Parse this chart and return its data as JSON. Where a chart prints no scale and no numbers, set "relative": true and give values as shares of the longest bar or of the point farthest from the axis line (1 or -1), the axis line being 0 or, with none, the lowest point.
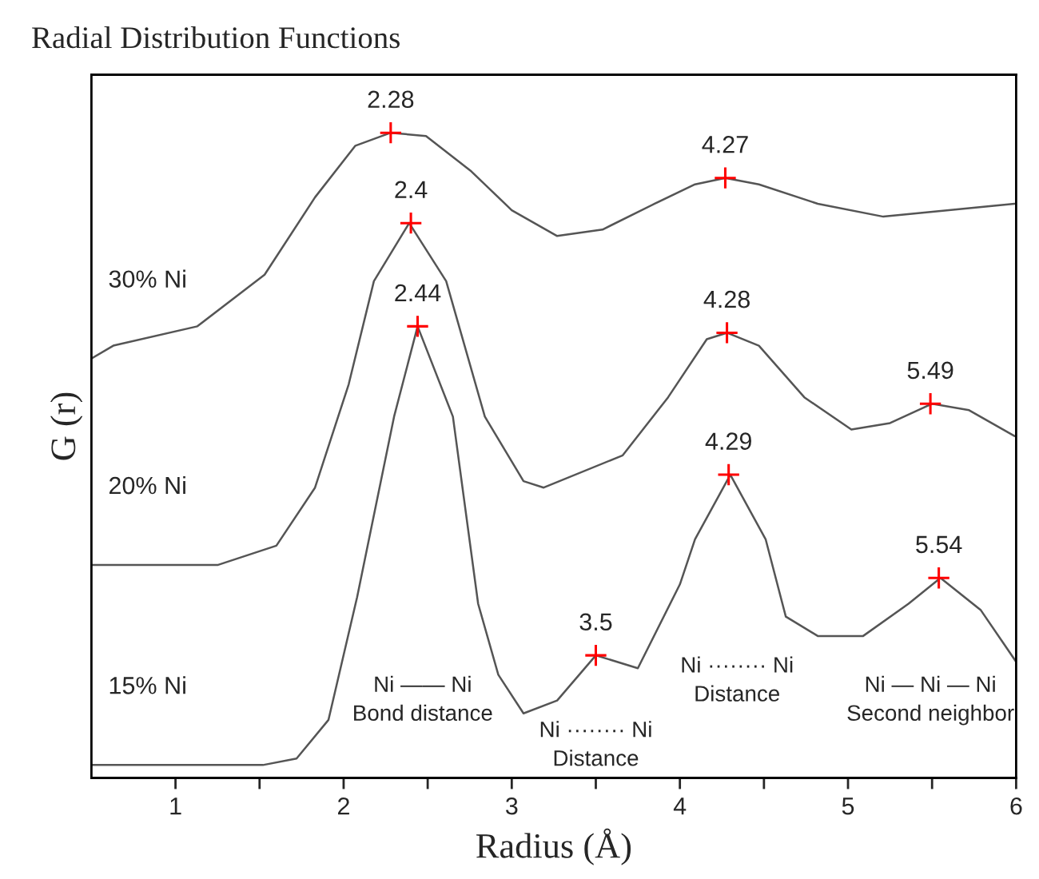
{
  "chart_data": {
    "type": "line",
    "title": "Radial Distribution Functions",
    "xlabel": "Radius (Å)",
    "ylabel": "G (r)",
    "relative": true,
    "xlim": [
      0.5,
      6
    ],
    "xticks": [
      1,
      {
        "value": 1.5,
        "label": null
      },
      2,
      {
        "value": 2.5,
        "label": null
      },
      3,
      {
        "value": 3.5,
        "label": null
      },
      4,
      {
        "value": 4.5,
        "label": null
      },
      5,
      {
        "value": 5.5,
        "label": null
      },
      6
    ],
    "grid": false,
    "legend": false,
    "tick_labels": "x",
    "series": [
      {
        "name": "30% Ni",
        "color": "#555555",
        "x": [
          0.5,
          0.63,
          1.13,
          1.53,
          1.83,
          2.07,
          2.28,
          2.49,
          2.76,
          3.0,
          3.27,
          3.54,
          3.85,
          4.09,
          4.27,
          4.47,
          4.82,
          5.21,
          5.6,
          5.99
        ],
        "values": [
          0.65,
          0.67,
          0.7,
          0.78,
          0.9,
          0.98,
          1.0,
          0.995,
          0.94,
          0.88,
          0.84,
          0.85,
          0.89,
          0.92,
          0.93,
          0.92,
          0.89,
          0.87,
          0.88,
          0.89
        ]
      },
      {
        "name": "20% Ni",
        "color": "#555555",
        "x": [
          0.5,
          1.25,
          1.6,
          1.83,
          2.03,
          2.18,
          2.39,
          2.61,
          2.84,
          3.07,
          3.19,
          3.66,
          3.93,
          4.16,
          4.28,
          4.47,
          4.74,
          5.02,
          5.25,
          5.5,
          5.72,
          5.99
        ],
        "values": [
          0.33,
          0.33,
          0.36,
          0.45,
          0.61,
          0.77,
          0.86,
          0.77,
          0.56,
          0.46,
          0.45,
          0.5,
          0.59,
          0.68,
          0.69,
          0.67,
          0.59,
          0.54,
          0.55,
          0.58,
          0.57,
          0.53
        ]
      },
      {
        "name": "15% Ni",
        "color": "#555555",
        "x": [
          0.5,
          1.52,
          1.72,
          1.91,
          2.08,
          2.3,
          2.44,
          2.65,
          2.8,
          2.92,
          3.07,
          3.27,
          3.5,
          3.75,
          4.0,
          4.09,
          4.3,
          4.51,
          4.63,
          4.82,
          5.09,
          5.36,
          5.55,
          5.79,
          6.0
        ],
        "values": [
          0.02,
          0.02,
          0.03,
          0.09,
          0.28,
          0.56,
          0.7,
          0.56,
          0.27,
          0.16,
          0.1,
          0.12,
          0.19,
          0.17,
          0.3,
          0.37,
          0.47,
          0.37,
          0.25,
          0.22,
          0.22,
          0.27,
          0.31,
          0.26,
          0.18
        ]
      },
      {
        "type": "scatter",
        "marker": "cross",
        "color": "#ff0000",
        "x": [
          2.28,
          4.27,
          2.4,
          4.28,
          5.49,
          2.44,
          3.5,
          4.29,
          5.54
        ],
        "values": [
          1.0,
          0.93,
          0.86,
          0.69,
          0.58,
          0.7,
          0.19,
          0.47,
          0.31
        ]
      }
    ],
    "annotations": [
      {
        "text": "2.28",
        "x": 2.28,
        "y": 1.0
      },
      {
        "text": "4.27",
        "x": 4.27,
        "y": 0.93
      },
      {
        "text": "2.4",
        "x": 2.4,
        "y": 0.86
      },
      {
        "text": "4.28",
        "x": 4.28,
        "y": 0.69
      },
      {
        "text": "5.49",
        "x": 5.49,
        "y": 0.58
      },
      {
        "text": "2.44",
        "x": 2.44,
        "y": 0.7
      },
      {
        "text": "3.5",
        "x": 3.5,
        "y": 0.19
      },
      {
        "text": "4.29",
        "x": 4.29,
        "y": 0.47
      },
      {
        "text": "5.54",
        "x": 5.54,
        "y": 0.31
      },
      "Ni —— Ni\nBond distance",
      "Ni ········ Ni\nDistance",
      "Ni ········ Ni\nDistance",
      "Ni — Ni — Ni\nSecond neighbor"
    ]
  }
}
